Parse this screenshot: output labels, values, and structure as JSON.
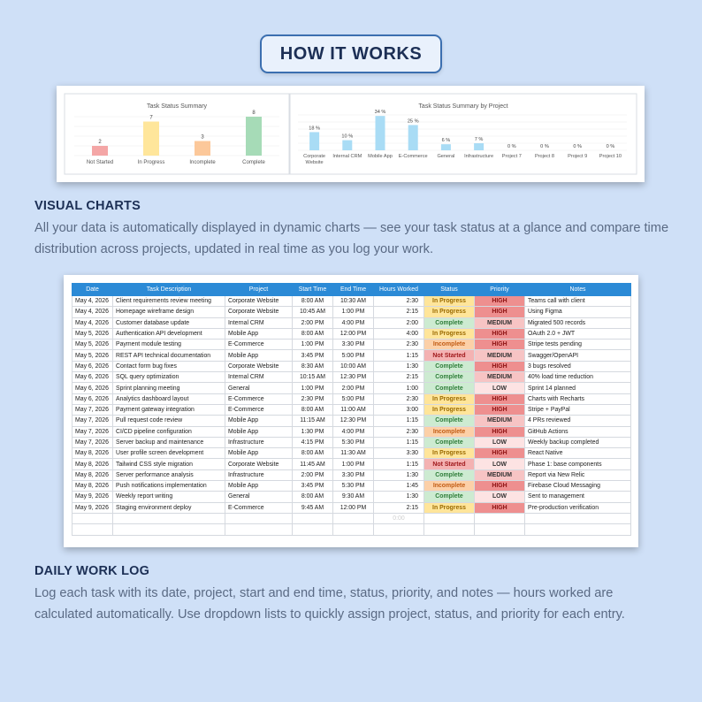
{
  "badge": "HOW IT WORKS",
  "charts": {
    "chart_data": [
      {
        "type": "bar",
        "title": "Task Status Summary",
        "categories": [
          "Not Started",
          "In Progress",
          "Incomplete",
          "Complete"
        ],
        "values": [
          2,
          7,
          3,
          8
        ],
        "data_labels": [
          "2",
          "7",
          "3",
          "8"
        ],
        "colors": [
          "#f4a6a6",
          "#ffe69b",
          "#fcc89a",
          "#a6dbb7"
        ],
        "ylim": [
          0,
          8
        ]
      },
      {
        "type": "bar",
        "title": "Task Status Summary by Project",
        "categories": [
          "Corporate Website",
          "Internal CRM",
          "Mobile App",
          "E-Commerce",
          "General",
          "Infrastructure",
          "Project 7",
          "Project 8",
          "Project 9",
          "Project 10"
        ],
        "values": [
          18,
          10,
          34,
          25,
          6,
          7,
          0,
          0,
          0,
          0
        ],
        "data_labels": [
          "18 %",
          "10 %",
          "34 %",
          "25 %",
          "6 %",
          "7 %",
          "0 %",
          "0 %",
          "0 %",
          "0 %"
        ],
        "color": "#a9dcf5",
        "ylim": [
          0,
          35
        ]
      }
    ]
  },
  "visual": {
    "heading": "VISUAL CHARTS",
    "body": "All your data is automatically displayed in dynamic charts — see your task status at a glance and compare time distribution across projects, updated in real time as you log your work."
  },
  "log": {
    "heading": "DAILY WORK LOG",
    "body": "Log each task with its date, project, start and end time, status, priority, and notes — hours worked are calculated automatically. Use dropdown lists to quickly assign project, status, and priority for each entry."
  },
  "table": {
    "columns": [
      "Date",
      "Task Description",
      "Project",
      "Start Time",
      "End Time",
      "Hours Worked",
      "Status",
      "Priority",
      "Notes"
    ],
    "rows": [
      [
        "May 4, 2026",
        "Client requirements review meeting",
        "Corporate Website",
        "8:00 AM",
        "10:30 AM",
        "2:30",
        "In Progress",
        "HIGH",
        "Teams call with client"
      ],
      [
        "May 4, 2026",
        "Homepage wireframe design",
        "Corporate Website",
        "10:45 AM",
        "1:00 PM",
        "2:15",
        "In Progress",
        "HIGH",
        "Using Figma"
      ],
      [
        "May 4, 2026",
        "Customer database update",
        "Internal CRM",
        "2:00 PM",
        "4:00 PM",
        "2:00",
        "Complete",
        "MEDIUM",
        "Migrated 500 records"
      ],
      [
        "May 5, 2026",
        "Authentication API development",
        "Mobile App",
        "8:00 AM",
        "12:00 PM",
        "4:00",
        "In Progress",
        "HIGH",
        "OAuth 2.0 + JWT"
      ],
      [
        "May 5, 2026",
        "Payment module testing",
        "E-Commerce",
        "1:00 PM",
        "3:30 PM",
        "2:30",
        "Incomplete",
        "HIGH",
        "Stripe tests pending"
      ],
      [
        "May 5, 2026",
        "REST API technical documentation",
        "Mobile App",
        "3:45 PM",
        "5:00 PM",
        "1:15",
        "Not Started",
        "MEDIUM",
        "Swagger/OpenAPI"
      ],
      [
        "May 6, 2026",
        "Contact form bug fixes",
        "Corporate Website",
        "8:30 AM",
        "10:00 AM",
        "1:30",
        "Complete",
        "HIGH",
        "3 bugs resolved"
      ],
      [
        "May 6, 2026",
        "SQL query optimization",
        "Internal CRM",
        "10:15 AM",
        "12:30 PM",
        "2:15",
        "Complete",
        "MEDIUM",
        "40% load time reduction"
      ],
      [
        "May 6, 2026",
        "Sprint planning meeting",
        "General",
        "1:00 PM",
        "2:00 PM",
        "1:00",
        "Complete",
        "LOW",
        "Sprint 14 planned"
      ],
      [
        "May 6, 2026",
        "Analytics dashboard layout",
        "E-Commerce",
        "2:30 PM",
        "5:00 PM",
        "2:30",
        "In Progress",
        "HIGH",
        "Charts with Recharts"
      ],
      [
        "May 7, 2026",
        "Payment gateway integration",
        "E-Commerce",
        "8:00 AM",
        "11:00 AM",
        "3:00",
        "In Progress",
        "HIGH",
        "Stripe + PayPal"
      ],
      [
        "May 7, 2026",
        "Pull request code review",
        "Mobile App",
        "11:15 AM",
        "12:30 PM",
        "1:15",
        "Complete",
        "MEDIUM",
        "4 PRs reviewed"
      ],
      [
        "May 7, 2026",
        "CI/CD pipeline configuration",
        "Mobile App",
        "1:30 PM",
        "4:00 PM",
        "2:30",
        "Incomplete",
        "HIGH",
        "GitHub Actions"
      ],
      [
        "May 7, 2026",
        "Server backup and maintenance",
        "Infrastructure",
        "4:15 PM",
        "5:30 PM",
        "1:15",
        "Complete",
        "LOW",
        "Weekly backup completed"
      ],
      [
        "May 8, 2026",
        "User profile screen development",
        "Mobile App",
        "8:00 AM",
        "11:30 AM",
        "3:30",
        "In Progress",
        "HIGH",
        "React Native"
      ],
      [
        "May 8, 2026",
        "Tailwind CSS style migration",
        "Corporate Website",
        "11:45 AM",
        "1:00 PM",
        "1:15",
        "Not Started",
        "LOW",
        "Phase 1: base components"
      ],
      [
        "May 8, 2026",
        "Server performance analysis",
        "Infrastructure",
        "2:00 PM",
        "3:30 PM",
        "1:30",
        "Complete",
        "MEDIUM",
        "Report via New Relic"
      ],
      [
        "May 8, 2026",
        "Push notifications implementation",
        "Mobile App",
        "3:45 PM",
        "5:30 PM",
        "1:45",
        "Incomplete",
        "HIGH",
        "Firebase Cloud Messaging"
      ],
      [
        "May 9, 2026",
        "Weekly report writing",
        "General",
        "8:00 AM",
        "9:30 AM",
        "1:30",
        "Complete",
        "LOW",
        "Sent to management"
      ],
      [
        "May 9, 2026",
        "Staging environment deploy",
        "E-Commerce",
        "9:45 AM",
        "12:00 PM",
        "2:15",
        "In Progress",
        "HIGH",
        "Pre-production verification"
      ]
    ],
    "blank_hours": "0:00",
    "blank_rows": 2
  }
}
